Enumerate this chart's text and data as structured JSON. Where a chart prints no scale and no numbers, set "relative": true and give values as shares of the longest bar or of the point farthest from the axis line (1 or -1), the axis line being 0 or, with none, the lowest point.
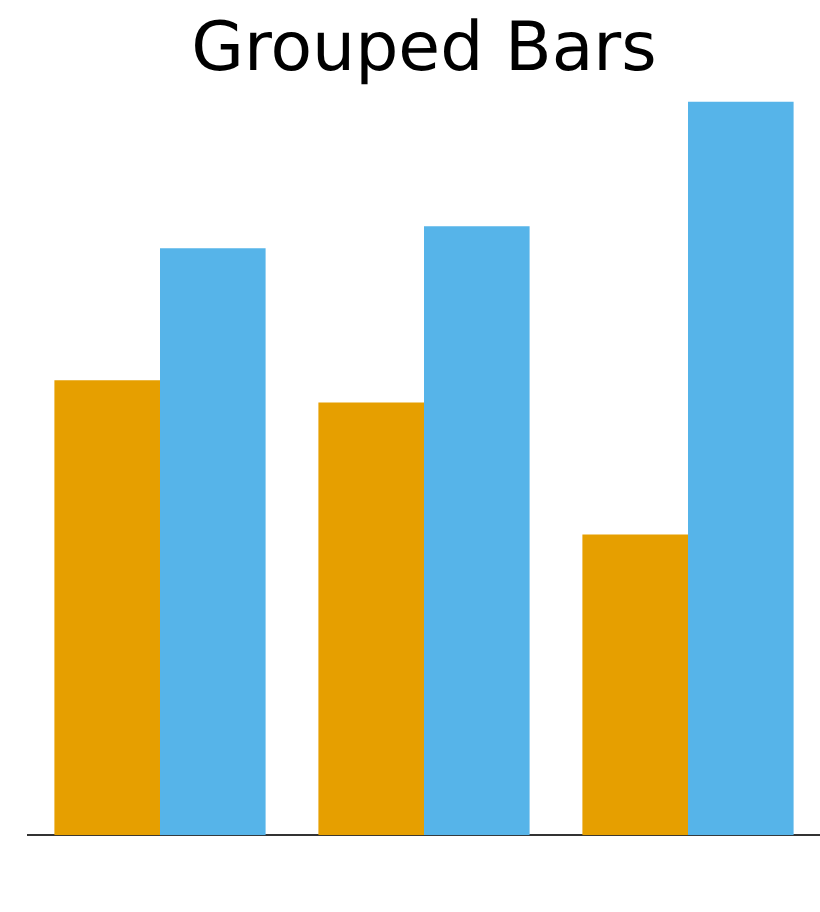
{
  "chart_data": {
    "type": "bar",
    "title": "Grouped Bars",
    "relative": true,
    "categories": [
      null,
      null,
      null
    ],
    "series": [
      {
        "color": "#e69f00",
        "values": [
          0.62,
          0.59,
          0.41
        ]
      },
      {
        "color": "#56b4e9",
        "values": [
          0.8,
          0.83,
          1
        ]
      }
    ],
    "grid": false,
    "legend": false
  }
}
